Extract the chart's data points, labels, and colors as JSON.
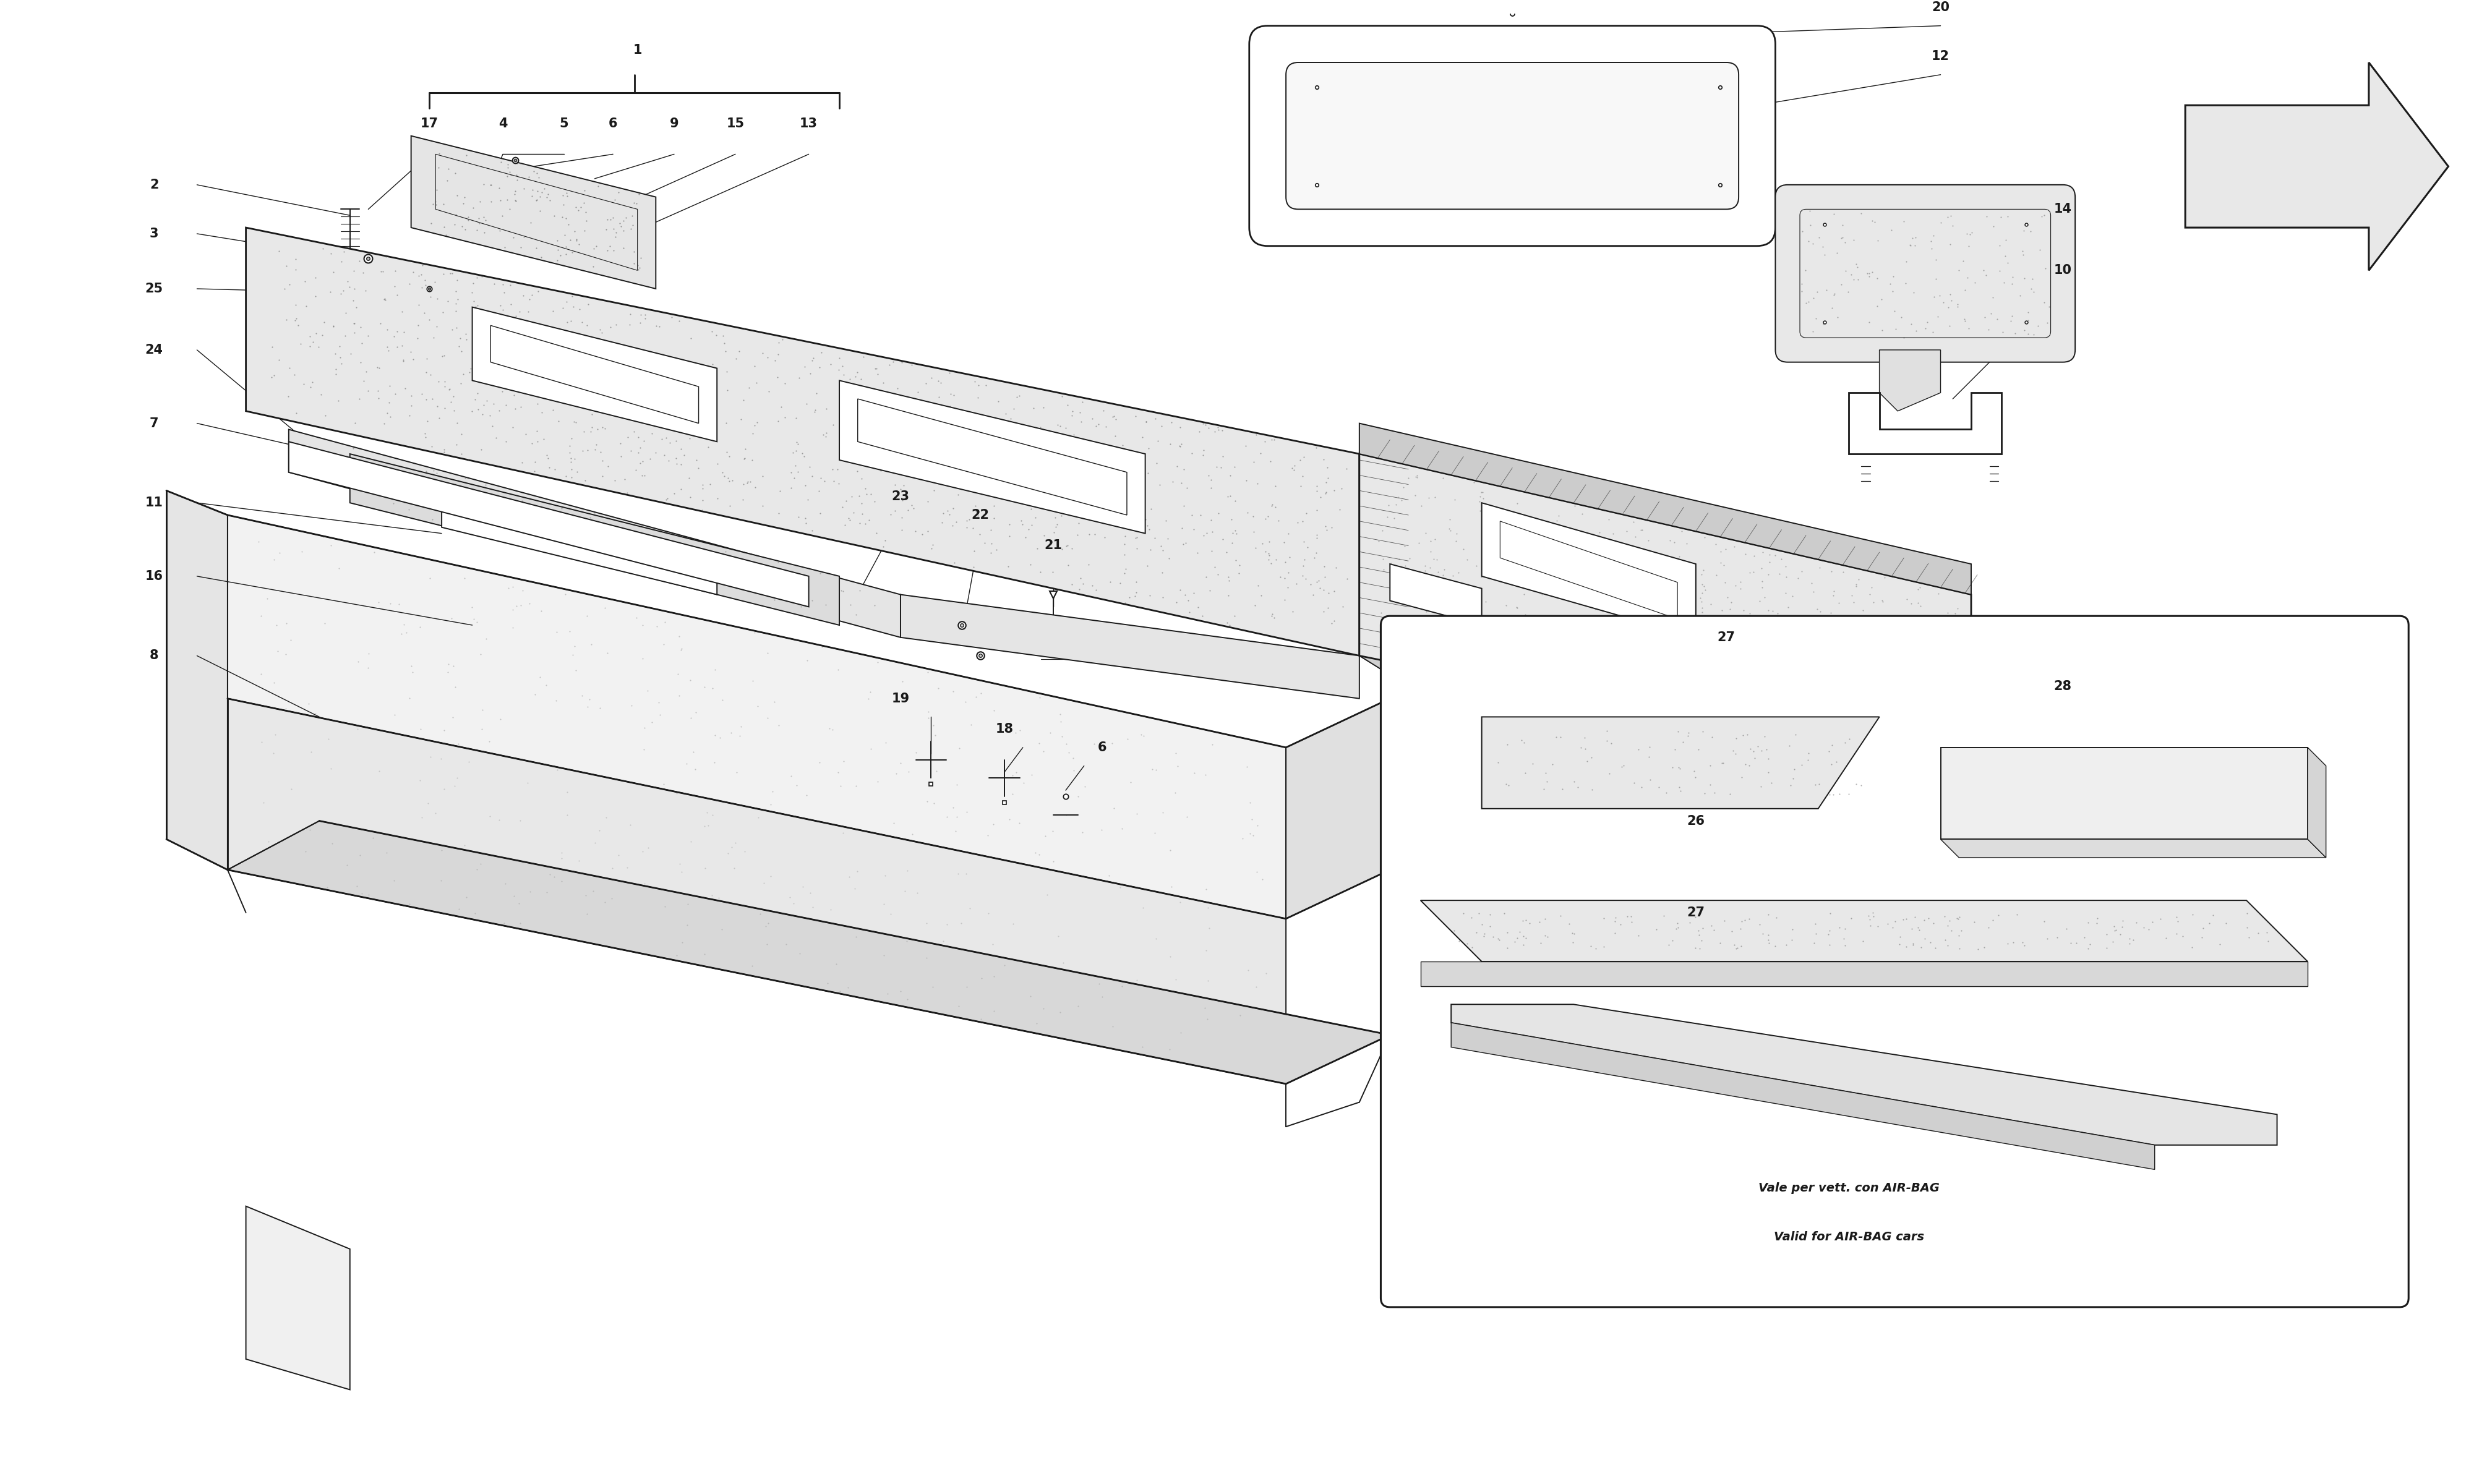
{
  "bg_color": "#ffffff",
  "line_color": "#1a1a1a",
  "fig_width": 40,
  "fig_height": 24,
  "footer_text1": "Vale per vett. con AIR-BAG",
  "footer_text2": "Valid for AIR-BAG cars",
  "label_size": 14
}
